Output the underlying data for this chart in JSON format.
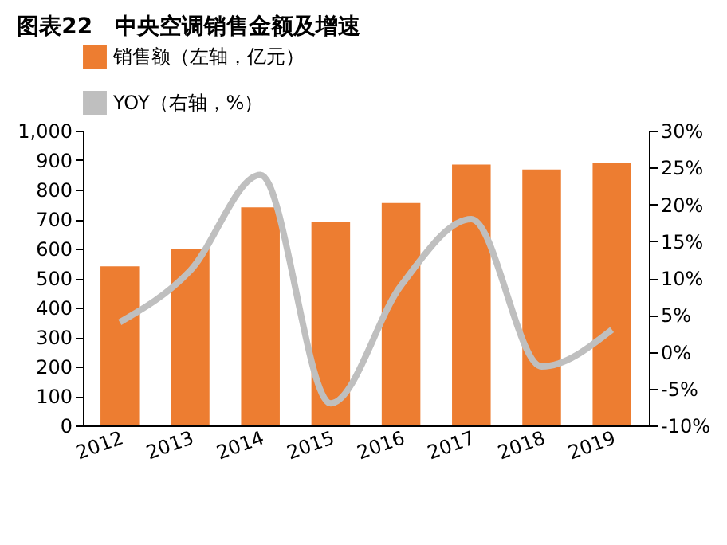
{
  "chart_data": {
    "type": "bar",
    "title": "图表22　中央空调销售金额及增速",
    "categories": [
      "2012",
      "2013",
      "2014",
      "2015",
      "2016",
      "2017",
      "2018",
      "2019"
    ],
    "series": [
      {
        "name": "销售额（左轴，亿元）",
        "color": "#ed7d31",
        "values": [
          540,
          600,
          740,
          690,
          755,
          885,
          868,
          890
        ]
      },
      {
        "name": "YOY（右轴，%）",
        "color": "#bfbfbf",
        "type": "line",
        "axis": "y2",
        "values": [
          4,
          11,
          24,
          -7,
          9,
          18,
          -2,
          3
        ]
      }
    ],
    "ylim": [
      0,
      1000
    ],
    "yticks": [
      0,
      100,
      200,
      300,
      400,
      500,
      600,
      700,
      800,
      900,
      {
        "value": 1000,
        "label": "1,000"
      }
    ],
    "y2lim": [
      -10,
      30
    ],
    "y2ticks": [
      {
        "value": -10,
        "label": "-10%"
      },
      {
        "value": -5,
        "label": "-5%"
      },
      {
        "value": 0,
        "label": "0%"
      },
      {
        "value": 5,
        "label": "5%"
      },
      {
        "value": 10,
        "label": "10%"
      },
      {
        "value": 15,
        "label": "15%"
      },
      {
        "value": 20,
        "label": "20%"
      },
      {
        "value": 25,
        "label": "25%"
      },
      {
        "value": 30,
        "label": "30%"
      }
    ],
    "legend": "top",
    "grid": false,
    "marker": "none",
    "line_style": "solid"
  }
}
